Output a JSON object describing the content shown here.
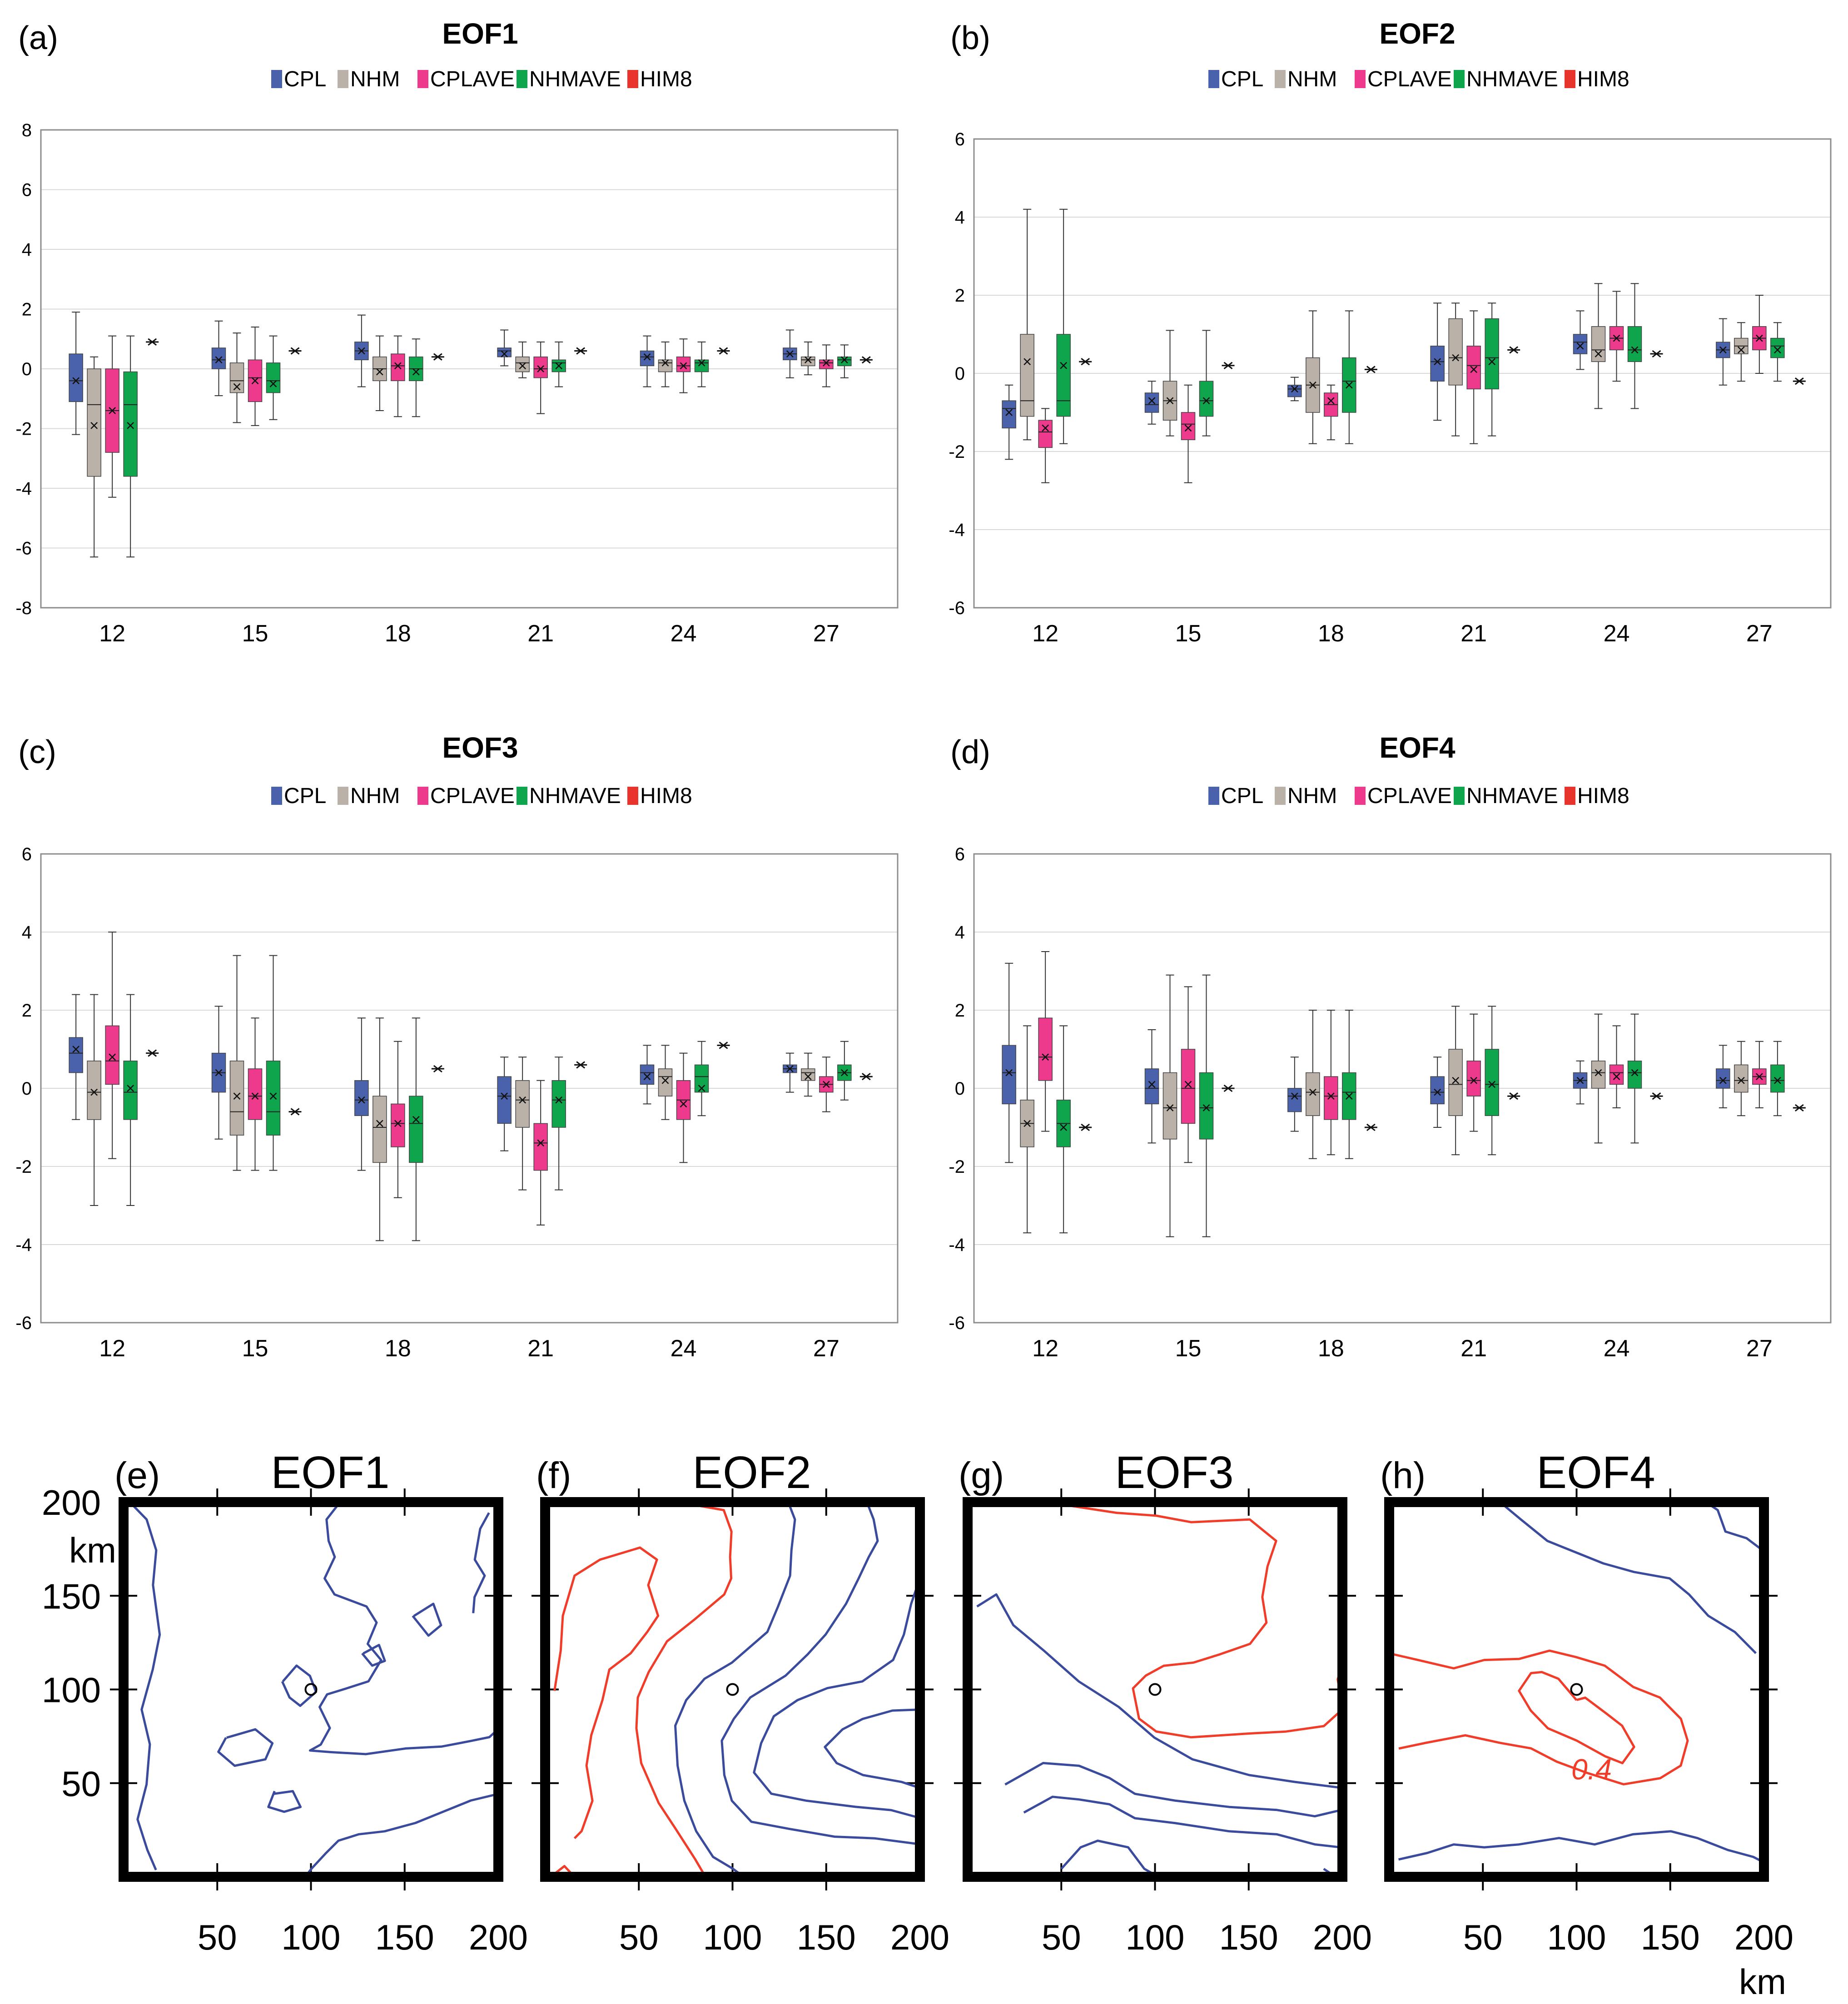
{
  "chart_data": [
    {
      "type": "box",
      "panel_label": "(a)",
      "title": "EOF1",
      "legend": [
        "CPL",
        "NHM",
        "CPLAVE",
        "NHMAVE",
        "HIM8"
      ],
      "categories": [
        "12",
        "15",
        "18",
        "21",
        "24",
        "27"
      ],
      "ylim": [
        -8,
        8
      ],
      "yticks": [
        8,
        6,
        4,
        2,
        0,
        -2,
        -4,
        -6,
        -8
      ],
      "series": [
        {
          "name": "CPL",
          "boxes": [
            [
              -2.2,
              -1.1,
              -0.4,
              0.5,
              1.9,
              -0.4
            ],
            [
              -0.9,
              0.0,
              0.3,
              0.7,
              1.6,
              0.3
            ],
            [
              -0.6,
              0.3,
              0.6,
              0.9,
              1.8,
              0.6
            ],
            [
              0.1,
              0.4,
              0.6,
              0.7,
              1.3,
              0.5
            ],
            [
              -0.6,
              0.1,
              0.4,
              0.6,
              1.1,
              0.4
            ],
            [
              -0.3,
              0.3,
              0.5,
              0.7,
              1.3,
              0.5
            ]
          ]
        },
        {
          "name": "NHM",
          "boxes": [
            [
              -6.3,
              -3.6,
              -1.2,
              0.0,
              0.4,
              -1.9
            ],
            [
              -1.8,
              -0.8,
              -0.4,
              0.2,
              1.2,
              -0.6
            ],
            [
              -1.4,
              -0.4,
              0.0,
              0.4,
              1.1,
              -0.1
            ],
            [
              -0.3,
              -0.1,
              0.2,
              0.4,
              0.9,
              0.1
            ],
            [
              -0.6,
              -0.1,
              0.2,
              0.3,
              0.9,
              0.2
            ],
            [
              -0.2,
              0.1,
              0.3,
              0.4,
              0.9,
              0.3
            ]
          ]
        },
        {
          "name": "CPLAVE",
          "boxes": [
            [
              -4.3,
              -2.8,
              -1.4,
              0.0,
              1.1,
              -1.4
            ],
            [
              -1.9,
              -1.1,
              -0.3,
              0.3,
              1.4,
              -0.4
            ],
            [
              -1.6,
              -0.4,
              0.1,
              0.5,
              1.1,
              0.1
            ],
            [
              -1.5,
              -0.3,
              0.0,
              0.4,
              0.9,
              0.0
            ],
            [
              -0.8,
              -0.1,
              0.1,
              0.4,
              1.0,
              0.1
            ],
            [
              -0.6,
              0.0,
              0.2,
              0.3,
              0.8,
              0.2
            ]
          ]
        },
        {
          "name": "NHMAVE",
          "boxes": [
            [
              -6.3,
              -3.6,
              -1.2,
              -0.1,
              1.1,
              -1.9
            ],
            [
              -1.7,
              -0.8,
              -0.4,
              0.2,
              1.1,
              -0.5
            ],
            [
              -1.6,
              -0.4,
              0.0,
              0.4,
              1.0,
              -0.1
            ],
            [
              -0.6,
              -0.1,
              0.2,
              0.3,
              0.9,
              0.1
            ],
            [
              -0.6,
              -0.1,
              0.2,
              0.3,
              0.9,
              0.2
            ],
            [
              -0.3,
              0.1,
              0.3,
              0.4,
              0.8,
              0.3
            ]
          ]
        },
        {
          "name": "HIM8",
          "values": [
            0.9,
            0.6,
            0.4,
            0.6,
            0.6,
            0.3
          ]
        }
      ]
    },
    {
      "type": "box",
      "panel_label": "(b)",
      "title": "EOF2",
      "legend": [
        "CPL",
        "NHM",
        "CPLAVE",
        "NHMAVE",
        "HIM8"
      ],
      "categories": [
        "12",
        "15",
        "18",
        "21",
        "24",
        "27"
      ],
      "ylim": [
        -6,
        6
      ],
      "yticks": [
        6,
        4,
        2,
        0,
        -2,
        -4,
        -6
      ],
      "series": [
        {
          "name": "CPL",
          "boxes": [
            [
              -2.2,
              -1.4,
              -0.9,
              -0.7,
              -0.3,
              -1.0
            ],
            [
              -1.3,
              -1.0,
              -0.8,
              -0.5,
              -0.2,
              -0.7
            ],
            [
              -0.7,
              -0.6,
              -0.4,
              -0.3,
              -0.1,
              -0.4
            ],
            [
              -1.2,
              -0.2,
              0.3,
              0.7,
              1.8,
              0.3
            ],
            [
              0.1,
              0.5,
              0.8,
              1.0,
              1.6,
              0.7
            ],
            [
              -0.3,
              0.4,
              0.6,
              0.8,
              1.4,
              0.6
            ]
          ]
        },
        {
          "name": "NHM",
          "boxes": [
            [
              -1.7,
              -1.1,
              -0.7,
              1.0,
              4.2,
              0.3
            ],
            [
              -1.6,
              -1.2,
              -0.7,
              -0.2,
              1.1,
              -0.7
            ],
            [
              -1.8,
              -1.0,
              -0.3,
              0.4,
              1.6,
              -0.3
            ],
            [
              -1.6,
              -0.3,
              0.4,
              1.4,
              1.8,
              0.4
            ],
            [
              -0.9,
              0.3,
              0.6,
              1.2,
              2.3,
              0.5
            ],
            [
              -0.2,
              0.5,
              0.7,
              0.9,
              1.3,
              0.6
            ]
          ]
        },
        {
          "name": "CPLAVE",
          "boxes": [
            [
              -2.8,
              -1.9,
              -1.5,
              -1.2,
              -0.9,
              -1.4
            ],
            [
              -2.8,
              -1.7,
              -1.3,
              -1.0,
              -0.3,
              -1.4
            ],
            [
              -1.7,
              -1.1,
              -0.8,
              -0.5,
              -0.3,
              -0.7
            ],
            [
              -1.8,
              -0.4,
              0.2,
              0.7,
              1.6,
              0.1
            ],
            [
              -0.2,
              0.6,
              0.9,
              1.2,
              2.1,
              0.9
            ],
            [
              0.0,
              0.6,
              0.9,
              1.2,
              2.0,
              0.9
            ]
          ]
        },
        {
          "name": "NHMAVE",
          "boxes": [
            [
              -1.8,
              -1.1,
              -0.7,
              1.0,
              4.2,
              0.2
            ],
            [
              -1.6,
              -1.1,
              -0.7,
              -0.2,
              1.1,
              -0.7
            ],
            [
              -1.8,
              -1.0,
              -0.2,
              0.4,
              1.6,
              -0.3
            ],
            [
              -1.6,
              -0.4,
              0.4,
              1.4,
              1.8,
              0.3
            ],
            [
              -0.9,
              0.3,
              0.6,
              1.2,
              2.3,
              0.6
            ],
            [
              -0.2,
              0.4,
              0.7,
              0.9,
              1.3,
              0.6
            ]
          ]
        },
        {
          "name": "HIM8",
          "values": [
            0.3,
            0.2,
            0.1,
            0.6,
            0.5,
            -0.2
          ]
        }
      ]
    },
    {
      "type": "box",
      "panel_label": "(c)",
      "title": "EOF3",
      "legend": [
        "CPL",
        "NHM",
        "CPLAVE",
        "NHMAVE",
        "HIM8"
      ],
      "categories": [
        "12",
        "15",
        "18",
        "21",
        "24",
        "27"
      ],
      "ylim": [
        -6,
        6
      ],
      "yticks": [
        6,
        4,
        2,
        0,
        -2,
        -4,
        -6
      ],
      "series": [
        {
          "name": "CPL",
          "boxes": [
            [
              -0.8,
              0.4,
              0.9,
              1.3,
              2.4,
              1.0
            ],
            [
              -1.3,
              -0.1,
              0.4,
              0.9,
              2.1,
              0.4
            ],
            [
              -2.1,
              -0.7,
              -0.3,
              0.2,
              1.8,
              -0.3
            ],
            [
              -1.6,
              -0.9,
              -0.2,
              0.3,
              0.8,
              -0.2
            ],
            [
              -0.4,
              0.1,
              0.4,
              0.6,
              1.1,
              0.3
            ],
            [
              -0.1,
              0.4,
              0.5,
              0.6,
              0.9,
              0.5
            ]
          ]
        },
        {
          "name": "NHM",
          "boxes": [
            [
              -3.0,
              -0.8,
              -0.1,
              0.7,
              2.4,
              -0.1
            ],
            [
              -2.1,
              -1.2,
              -0.6,
              0.7,
              3.4,
              -0.2
            ],
            [
              -3.9,
              -1.9,
              -1.0,
              -0.2,
              1.8,
              -0.9
            ],
            [
              -2.6,
              -1.0,
              -0.3,
              0.2,
              0.8,
              -0.3
            ],
            [
              -0.8,
              -0.2,
              0.3,
              0.5,
              1.1,
              0.2
            ],
            [
              -0.2,
              0.2,
              0.4,
              0.5,
              0.9,
              0.3
            ]
          ]
        },
        {
          "name": "CPLAVE",
          "boxes": [
            [
              -1.8,
              0.1,
              0.7,
              1.6,
              4.0,
              0.8
            ],
            [
              -2.1,
              -0.8,
              -0.2,
              0.5,
              1.8,
              -0.2
            ],
            [
              -2.8,
              -1.5,
              -0.9,
              -0.4,
              1.2,
              -0.9
            ],
            [
              -3.5,
              -2.1,
              -1.4,
              -0.9,
              0.2,
              -1.4
            ],
            [
              -1.9,
              -0.8,
              -0.3,
              0.2,
              0.9,
              -0.4
            ],
            [
              -0.6,
              -0.1,
              0.1,
              0.3,
              0.8,
              0.1
            ]
          ]
        },
        {
          "name": "NHMAVE",
          "boxes": [
            [
              -3.0,
              -0.8,
              -0.1,
              0.7,
              2.4,
              0.0
            ],
            [
              -2.1,
              -1.2,
              -0.6,
              0.7,
              3.4,
              -0.2
            ],
            [
              -3.9,
              -1.9,
              -0.9,
              -0.2,
              1.8,
              -0.8
            ],
            [
              -2.6,
              -1.0,
              -0.3,
              0.2,
              0.8,
              -0.3
            ],
            [
              -0.7,
              -0.1,
              0.3,
              0.6,
              1.2,
              0.0
            ],
            [
              -0.3,
              0.2,
              0.4,
              0.6,
              1.2,
              0.4
            ]
          ]
        },
        {
          "name": "HIM8",
          "values": [
            0.9,
            -0.6,
            0.5,
            0.6,
            1.1,
            0.3
          ]
        }
      ]
    },
    {
      "type": "box",
      "panel_label": "(d)",
      "title": "EOF4",
      "legend": [
        "CPL",
        "NHM",
        "CPLAVE",
        "NHMAVE",
        "HIM8"
      ],
      "categories": [
        "12",
        "15",
        "18",
        "21",
        "24",
        "27"
      ],
      "ylim": [
        -6,
        6
      ],
      "yticks": [
        6,
        4,
        2,
        0,
        -2,
        -4,
        -6
      ],
      "series": [
        {
          "name": "CPL",
          "boxes": [
            [
              -1.9,
              -0.4,
              0.4,
              1.1,
              3.2,
              0.4
            ],
            [
              -1.4,
              -0.4,
              0.0,
              0.5,
              1.5,
              0.1
            ],
            [
              -1.1,
              -0.6,
              -0.2,
              0.0,
              0.8,
              -0.2
            ],
            [
              -1.0,
              -0.4,
              -0.1,
              0.3,
              0.8,
              -0.1
            ],
            [
              -0.4,
              0.0,
              0.2,
              0.4,
              0.7,
              0.2
            ],
            [
              -0.5,
              0.0,
              0.2,
              0.5,
              1.1,
              0.2
            ]
          ]
        },
        {
          "name": "NHM",
          "boxes": [
            [
              -3.7,
              -1.5,
              -0.9,
              -0.3,
              1.6,
              -0.9
            ],
            [
              -3.8,
              -1.3,
              -0.5,
              0.4,
              2.9,
              -0.5
            ],
            [
              -1.8,
              -0.7,
              -0.1,
              0.4,
              2.0,
              -0.1
            ],
            [
              -1.7,
              -0.7,
              0.1,
              1.0,
              2.1,
              0.2
            ],
            [
              -1.4,
              0.0,
              0.4,
              0.7,
              1.9,
              0.4
            ],
            [
              -0.7,
              -0.1,
              0.2,
              0.6,
              1.2,
              0.2
            ]
          ]
        },
        {
          "name": "CPLAVE",
          "boxes": [
            [
              -1.1,
              0.2,
              0.8,
              1.8,
              3.5,
              0.8
            ],
            [
              -1.9,
              -0.9,
              0.0,
              1.0,
              2.6,
              0.1
            ],
            [
              -1.7,
              -0.8,
              -0.2,
              0.3,
              2.0,
              -0.2
            ],
            [
              -1.1,
              -0.2,
              0.2,
              0.7,
              1.9,
              0.2
            ],
            [
              -0.5,
              0.1,
              0.4,
              0.6,
              1.6,
              0.3
            ],
            [
              -0.5,
              0.1,
              0.3,
              0.5,
              1.2,
              0.3
            ]
          ]
        },
        {
          "name": "NHMAVE",
          "boxes": [
            [
              -3.7,
              -1.5,
              -0.9,
              -0.3,
              1.6,
              -1.0
            ],
            [
              -3.8,
              -1.3,
              -0.5,
              0.4,
              2.9,
              -0.5
            ],
            [
              -1.8,
              -0.8,
              -0.1,
              0.4,
              2.0,
              -0.2
            ],
            [
              -1.7,
              -0.7,
              0.1,
              1.0,
              2.1,
              0.1
            ],
            [
              -1.4,
              0.0,
              0.4,
              0.7,
              1.9,
              0.4
            ],
            [
              -0.7,
              -0.1,
              0.2,
              0.6,
              1.2,
              0.2
            ]
          ]
        },
        {
          "name": "HIM8",
          "values": [
            -1.0,
            0.0,
            -1.0,
            -0.2,
            -0.2,
            -0.5
          ]
        }
      ]
    },
    {
      "type": "contour",
      "panel_label": "(e)",
      "title": "EOF1",
      "xticks": [
        "50",
        "100",
        "150",
        "200"
      ],
      "yticks": [
        "50",
        "100",
        "150",
        "200"
      ],
      "xunit": "km",
      "yunit": "km",
      "xlim": [
        0,
        200
      ],
      "ylim": [
        0,
        200
      ]
    },
    {
      "type": "contour",
      "panel_label": "(f)",
      "title": "EOF2",
      "xticks": [
        "50",
        "100",
        "150",
        "200"
      ],
      "xlim": [
        0,
        200
      ],
      "ylim": [
        0,
        200
      ]
    },
    {
      "type": "contour",
      "panel_label": "(g)",
      "title": "EOF3",
      "xticks": [
        "50",
        "100",
        "150",
        "200"
      ],
      "xlim": [
        0,
        200
      ],
      "ylim": [
        0,
        200
      ]
    },
    {
      "type": "contour",
      "panel_label": "(h)",
      "title": "EOF4",
      "xticks": [
        "50",
        "100",
        "150",
        "200"
      ],
      "xunit": "km",
      "xlim": [
        0,
        200
      ],
      "ylim": [
        0,
        200
      ],
      "contour_labels": [
        "0.4"
      ]
    }
  ],
  "colors": {
    "CPL": "#4a62ac",
    "NHM": "#bab2a9",
    "CPLAVE": "#ee3a8c",
    "NHMAVE": "#0ea54d",
    "HIM8": "#e8342c",
    "contour_negative": "#3a4a9c",
    "contour_positive": "#f03c28"
  }
}
